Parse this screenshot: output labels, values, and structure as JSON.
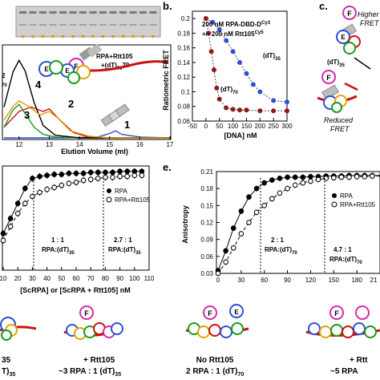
{
  "panel_labels": {
    "b": "b.",
    "c": "c.",
    "e": "e."
  },
  "colors": {
    "blue": "#2f4fd8",
    "darkred": "#8b1a1a",
    "green": "#1a9a1a",
    "red": "#cc1111",
    "black": "#000000",
    "orange": "#e59400",
    "sec_red": "#cc1111",
    "gray": "#b0b0b0"
  },
  "icon_names": [
    "rpa-rtt105-dna-cartoon-icon",
    "rtt105-icon",
    "rpa-complex-icon",
    "dna-strand-icon"
  ],
  "panel_a": {
    "xlabel": "Elution Volume (ml)",
    "xticks": [
      "12",
      "13",
      "14",
      "15",
      "16",
      "17"
    ],
    "complex_label_line1": "RPA+Rtt105",
    "complex_label_line2": "+(dT)",
    "complex_label_sub": "70",
    "peak_labels": [
      "4",
      "2",
      "3",
      "1"
    ],
    "left_edge_label": "2",
    "left_edge_sub": "70",
    "chart_data": {
      "type": "line",
      "xlabel": "Elution Volume (ml)",
      "xlim": [
        11.5,
        17
      ],
      "series": [
        {
          "name": "1",
          "x": [
            11.5,
            13.5,
            14.6,
            15.0,
            15.2,
            15.4,
            16,
            17
          ],
          "values": [
            0.0,
            0.0,
            0.01,
            0.05,
            0.08,
            0.04,
            0.01,
            0.0
          ]
        },
        {
          "name": "2",
          "x": [
            11.5,
            12.0,
            12.4,
            12.8,
            13.0,
            13.3,
            13.8,
            14.3,
            15,
            17
          ],
          "values": [
            0.12,
            0.3,
            0.35,
            0.3,
            0.33,
            0.22,
            0.06,
            0.01,
            0.0,
            0.0
          ]
        },
        {
          "name": "3",
          "x": [
            11.5,
            11.8,
            12.0,
            12.2,
            12.5,
            12.8,
            13.2,
            14,
            17
          ],
          "values": [
            0.12,
            0.32,
            0.38,
            0.28,
            0.12,
            0.04,
            0.01,
            0.0,
            0.0
          ]
        },
        {
          "name": "4",
          "x": [
            11.5,
            11.8,
            12.0,
            12.2,
            12.5,
            12.8,
            13.2,
            14,
            17
          ],
          "values": [
            0.35,
            0.75,
            0.88,
            0.76,
            0.4,
            0.14,
            0.03,
            0.0,
            0.0
          ]
        },
        {
          "name": "",
          "x": [
            11.5,
            11.8,
            12.0,
            12.3,
            12.7,
            13.0,
            13.3,
            13.7,
            14.3,
            15,
            17
          ],
          "values": [
            0.2,
            0.36,
            0.42,
            0.36,
            0.26,
            0.3,
            0.22,
            0.08,
            0.02,
            0.0,
            0.0
          ]
        }
      ]
    }
  },
  "panel_b": {
    "legend_line1": "200 nM RPA-DBD-D",
    "legend_sup1": "Cy3",
    "legend_line2": "+/-  200 nM Rtt105",
    "legend_sup2": "Cy5",
    "label_dt35": "(dT)",
    "label_dt35_sub": "35",
    "label_dt70": "(dT)",
    "label_dt70_sub": "70",
    "chart_data": {
      "type": "scatter",
      "xlabel": "[DNA] nM",
      "ylabel": "Ratiometric FRET",
      "xlim": [
        -50,
        300
      ],
      "ylim": [
        0.06,
        0.21
      ],
      "xticks": [
        -50,
        0,
        50,
        100,
        150,
        200,
        250,
        300
      ],
      "yticks": [
        0.06,
        0.08,
        0.1,
        0.12,
        0.14,
        0.16,
        0.18,
        0.2
      ],
      "series": [
        {
          "name": "(dT)35",
          "x": [
            0,
            25,
            50,
            75,
            100,
            125,
            150,
            175,
            200,
            250,
            300
          ],
          "values": [
            0.2,
            0.195,
            0.185,
            0.17,
            0.155,
            0.14,
            0.125,
            0.11,
            0.1,
            0.088,
            0.086
          ]
        },
        {
          "name": "(dT)70",
          "x": [
            0,
            10,
            20,
            30,
            40,
            50,
            75,
            100,
            125,
            150,
            200,
            250,
            300
          ],
          "values": [
            0.2,
            0.18,
            0.155,
            0.13,
            0.105,
            0.09,
            0.078,
            0.076,
            0.075,
            0.075,
            0.074,
            0.074,
            0.074
          ]
        }
      ]
    }
  },
  "panel_c": {
    "high_fret_line1": "Higher",
    "high_fret_line2": "FRET",
    "dna_label": "(dT)",
    "dna_sub": "35",
    "reduced_line1": "Reduced",
    "reduced_line2": "FRET"
  },
  "panel_d": {
    "xlabel": "[ScRPA]  or [ScRPA + Rtt105] nM",
    "xticks": [
      "10",
      "20",
      "30",
      "40",
      "50",
      "60",
      "70",
      "80",
      "90",
      "100",
      "110"
    ],
    "legend": [
      "RPA",
      "RPA+Rtt105"
    ],
    "ratio1_line1": "1 : 1",
    "ratio1_line2": "RPA:(dT)",
    "ratio1_sub": "35",
    "ratio2_line1": "2.7 : 1",
    "ratio2_line2": "RPA:(dT)",
    "ratio2_sub": "35",
    "chart_data": {
      "type": "scatter",
      "xlabel": "[ScRPA]  or [ScRPA + Rtt105] nM",
      "xlim": [
        10,
        110
      ],
      "ylim": [
        0.0,
        1.0
      ],
      "series": [
        {
          "name": "RPA",
          "x": [
            10,
            15,
            20,
            25,
            30,
            35,
            40,
            45,
            50,
            55,
            60,
            65,
            70,
            75,
            80,
            85,
            90,
            95,
            100,
            105
          ],
          "values": [
            0.35,
            0.5,
            0.65,
            0.8,
            0.9,
            0.92,
            0.93,
            0.94,
            0.94,
            0.95,
            0.95,
            0.95,
            0.96,
            0.96,
            0.96,
            0.96,
            0.97,
            0.97,
            0.97,
            0.97
          ]
        },
        {
          "name": "RPA+Rtt105",
          "x": [
            10,
            15,
            20,
            25,
            30,
            35,
            40,
            45,
            50,
            55,
            60,
            65,
            70,
            75,
            80,
            85,
            90,
            95,
            100,
            105
          ],
          "values": [
            0.28,
            0.42,
            0.55,
            0.65,
            0.72,
            0.76,
            0.79,
            0.81,
            0.83,
            0.85,
            0.86,
            0.88,
            0.89,
            0.9,
            0.91,
            0.91,
            0.92,
            0.92,
            0.93,
            0.93
          ]
        }
      ]
    }
  },
  "panel_e": {
    "ylabel": "Anisotropy",
    "yticks": [
      "0.03",
      "0.06",
      "0.09",
      "0.12",
      "0.15",
      "0.18",
      "0.21"
    ],
    "xticks": [
      "0",
      "30",
      "60",
      "90",
      "120",
      "150",
      "180",
      "21"
    ],
    "legend": [
      "RPA",
      "RPA+Rtt105"
    ],
    "ratio1_line1": "2 : 1",
    "ratio1_line2": "RPA:(dT)",
    "ratio1_sub": "70",
    "ratio2_line1": "4.7 : 1",
    "ratio2_line2": "RPA:(dT)",
    "ratio2_sub": "70",
    "chart_data": {
      "type": "scatter",
      "ylabel": "Anisotropy",
      "xlim": [
        0,
        210
      ],
      "ylim": [
        0.03,
        0.21
      ],
      "series": [
        {
          "name": "RPA",
          "x": [
            0,
            10,
            20,
            30,
            40,
            50,
            60,
            70,
            80,
            90,
            100,
            110,
            120,
            130,
            140,
            150,
            160,
            170,
            180,
            190,
            200,
            210
          ],
          "values": [
            0.035,
            0.07,
            0.11,
            0.14,
            0.165,
            0.18,
            0.19,
            0.195,
            0.198,
            0.2,
            0.2,
            0.2,
            0.201,
            0.201,
            0.202,
            0.202,
            0.202,
            0.203,
            0.203,
            0.203,
            0.203,
            0.203
          ]
        },
        {
          "name": "RPA+Rtt105",
          "x": [
            0,
            10,
            20,
            30,
            40,
            50,
            60,
            70,
            80,
            90,
            100,
            110,
            120,
            130,
            140,
            150,
            160,
            170,
            180,
            190,
            200,
            210
          ],
          "values": [
            0.03,
            0.05,
            0.075,
            0.1,
            0.12,
            0.138,
            0.15,
            0.162,
            0.172,
            0.18,
            0.186,
            0.19,
            0.193,
            0.196,
            0.198,
            0.199,
            0.2,
            0.2,
            0.201,
            0.201,
            0.202,
            0.202
          ]
        }
      ]
    }
  },
  "bottom": {
    "left_line1": "35",
    "left_line2": "T)",
    "left_line2_sub": "35",
    "mid_left_line1": "+ Rtt105",
    "mid_left_line2": "~3 RPA : 1 (dT)",
    "mid_left_line2_sub": "35",
    "mid_right_line1": "No Rtt105",
    "mid_right_line2": "2 RPA : 1 (dT)",
    "mid_right_line2_sub": "70",
    "right_line1": "+ Rtt",
    "right_line2": "~5 RPA"
  }
}
